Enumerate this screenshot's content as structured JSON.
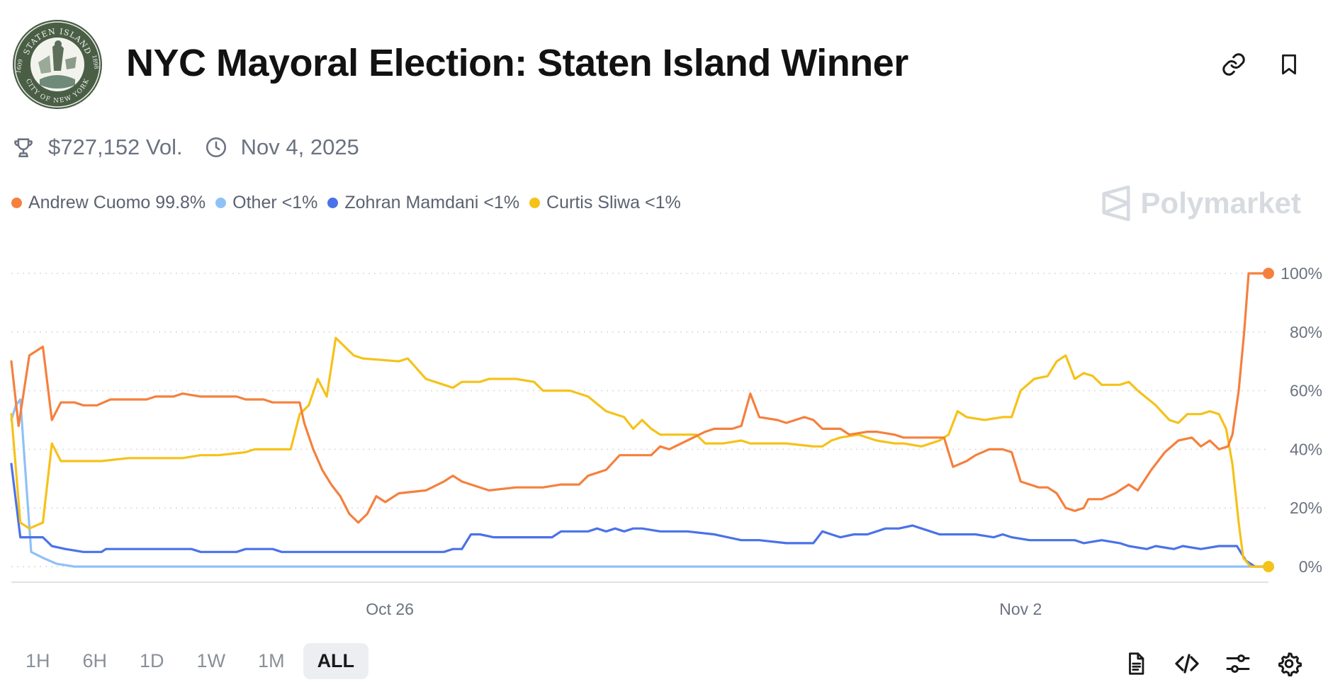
{
  "header": {
    "title": "NYC Mayoral Election: Staten Island Winner",
    "seal": {
      "top_text": "STATEN ISLAND",
      "bottom_text": "CITY OF NEW YORK",
      "left_year": "1609",
      "right_year": "1898"
    }
  },
  "meta": {
    "volume": "$727,152 Vol.",
    "date": "Nov 4, 2025"
  },
  "brand": {
    "name": "Polymarket"
  },
  "legend": [
    {
      "name": "Andrew Cuomo",
      "value": "99.8%",
      "color": "#f5803e"
    },
    {
      "name": "Other",
      "value": "<1%",
      "color": "#8fc1f5"
    },
    {
      "name": "Zohran Mamdani",
      "value": "<1%",
      "color": "#4a72e8"
    },
    {
      "name": "Curtis Sliwa",
      "value": "<1%",
      "color": "#f5c21a"
    }
  ],
  "time_ranges": [
    {
      "label": "1H",
      "active": false
    },
    {
      "label": "6H",
      "active": false
    },
    {
      "label": "1D",
      "active": false
    },
    {
      "label": "1W",
      "active": false
    },
    {
      "label": "1M",
      "active": false
    },
    {
      "label": "ALL",
      "active": true
    }
  ],
  "chart_data": {
    "type": "line",
    "x_unit": "days",
    "x_range": [
      0,
      13.95
    ],
    "ylim": [
      0,
      100
    ],
    "y_ticks": [
      0,
      20,
      40,
      60,
      80,
      100
    ],
    "y_tick_labels": [
      "0%",
      "20%",
      "40%",
      "60%",
      "80%",
      "100%"
    ],
    "x_tick_labels": [
      {
        "x": 4.2,
        "label": "Oct 26"
      },
      {
        "x": 11.2,
        "label": "Nov 2"
      }
    ],
    "grid": true,
    "series": [
      {
        "name": "Andrew Cuomo",
        "color": "#f5803e",
        "end_marker": true,
        "points": [
          [
            0,
            70
          ],
          [
            0.08,
            48
          ],
          [
            0.2,
            72
          ],
          [
            0.35,
            75
          ],
          [
            0.45,
            50
          ],
          [
            0.55,
            56
          ],
          [
            0.7,
            56
          ],
          [
            0.8,
            55
          ],
          [
            0.95,
            55
          ],
          [
            1.1,
            57
          ],
          [
            1.5,
            57
          ],
          [
            1.6,
            58
          ],
          [
            1.8,
            58
          ],
          [
            1.9,
            59
          ],
          [
            2.1,
            58
          ],
          [
            2.5,
            58
          ],
          [
            2.6,
            57
          ],
          [
            2.8,
            57
          ],
          [
            2.9,
            56
          ],
          [
            3.2,
            56
          ],
          [
            3.25,
            49
          ],
          [
            3.35,
            40
          ],
          [
            3.45,
            33
          ],
          [
            3.55,
            28
          ],
          [
            3.65,
            24
          ],
          [
            3.75,
            18
          ],
          [
            3.85,
            15
          ],
          [
            3.95,
            18
          ],
          [
            4.05,
            24
          ],
          [
            4.15,
            22
          ],
          [
            4.3,
            25
          ],
          [
            4.6,
            26
          ],
          [
            4.8,
            29
          ],
          [
            4.9,
            31
          ],
          [
            5.0,
            29
          ],
          [
            5.1,
            28
          ],
          [
            5.3,
            26
          ],
          [
            5.6,
            27
          ],
          [
            5.9,
            27
          ],
          [
            6.1,
            28
          ],
          [
            6.3,
            28
          ],
          [
            6.4,
            31
          ],
          [
            6.6,
            33
          ],
          [
            6.75,
            38
          ],
          [
            7.1,
            38
          ],
          [
            7.2,
            41
          ],
          [
            7.3,
            40
          ],
          [
            7.5,
            43
          ],
          [
            7.7,
            46
          ],
          [
            7.8,
            47
          ],
          [
            8.0,
            47
          ],
          [
            8.1,
            48
          ],
          [
            8.2,
            59
          ],
          [
            8.3,
            51
          ],
          [
            8.5,
            50
          ],
          [
            8.6,
            49
          ],
          [
            8.8,
            51
          ],
          [
            8.9,
            50
          ],
          [
            9.0,
            47
          ],
          [
            9.2,
            47
          ],
          [
            9.3,
            45
          ],
          [
            9.5,
            46
          ],
          [
            9.6,
            46
          ],
          [
            9.8,
            45
          ],
          [
            9.9,
            44
          ],
          [
            10.1,
            44
          ],
          [
            10.25,
            44
          ],
          [
            10.35,
            44
          ],
          [
            10.45,
            34
          ],
          [
            10.6,
            36
          ],
          [
            10.7,
            38
          ],
          [
            10.85,
            40
          ],
          [
            11.0,
            40
          ],
          [
            11.1,
            39
          ],
          [
            11.2,
            29
          ],
          [
            11.4,
            27
          ],
          [
            11.5,
            27
          ],
          [
            11.6,
            25
          ],
          [
            11.7,
            20
          ],
          [
            11.8,
            19
          ],
          [
            11.9,
            20
          ],
          [
            11.95,
            23
          ],
          [
            12.1,
            23
          ],
          [
            12.25,
            25
          ],
          [
            12.4,
            28
          ],
          [
            12.5,
            26
          ],
          [
            12.65,
            33
          ],
          [
            12.8,
            39
          ],
          [
            12.95,
            43
          ],
          [
            13.1,
            44
          ],
          [
            13.2,
            41
          ],
          [
            13.3,
            43
          ],
          [
            13.4,
            40
          ],
          [
            13.5,
            41
          ],
          [
            13.55,
            45
          ],
          [
            13.62,
            60
          ],
          [
            13.68,
            80
          ],
          [
            13.73,
            100
          ],
          [
            13.95,
            100
          ]
        ]
      },
      {
        "name": "Other",
        "color": "#8fc1f5",
        "end_marker": false,
        "points": [
          [
            0,
            50
          ],
          [
            0.05,
            55
          ],
          [
            0.1,
            57
          ],
          [
            0.15,
            35
          ],
          [
            0.22,
            5
          ],
          [
            0.35,
            3
          ],
          [
            0.5,
            1
          ],
          [
            0.7,
            0
          ],
          [
            1,
            0
          ],
          [
            6,
            0
          ],
          [
            13,
            0
          ],
          [
            13.95,
            0
          ]
        ]
      },
      {
        "name": "Zohran Mamdani",
        "color": "#4a72e8",
        "end_marker": false,
        "points": [
          [
            0,
            35
          ],
          [
            0.1,
            10
          ],
          [
            0.2,
            10
          ],
          [
            0.35,
            10
          ],
          [
            0.45,
            7
          ],
          [
            0.6,
            6
          ],
          [
            0.8,
            5
          ],
          [
            1,
            5
          ],
          [
            1.05,
            6
          ],
          [
            1.5,
            6
          ],
          [
            2.0,
            6
          ],
          [
            2.1,
            5
          ],
          [
            2.5,
            5
          ],
          [
            2.6,
            6
          ],
          [
            2.9,
            6
          ],
          [
            3.0,
            5
          ],
          [
            3.5,
            5
          ],
          [
            4.0,
            5
          ],
          [
            4.5,
            5
          ],
          [
            4.8,
            5
          ],
          [
            4.9,
            6
          ],
          [
            5.0,
            6
          ],
          [
            5.1,
            11
          ],
          [
            5.2,
            11
          ],
          [
            5.35,
            10
          ],
          [
            5.6,
            10
          ],
          [
            6.0,
            10
          ],
          [
            6.1,
            12
          ],
          [
            6.4,
            12
          ],
          [
            6.5,
            13
          ],
          [
            6.6,
            12
          ],
          [
            6.7,
            13
          ],
          [
            6.8,
            12
          ],
          [
            6.9,
            13
          ],
          [
            7.0,
            13
          ],
          [
            7.2,
            12
          ],
          [
            7.5,
            12
          ],
          [
            7.8,
            11
          ],
          [
            8.1,
            9
          ],
          [
            8.3,
            9
          ],
          [
            8.6,
            8
          ],
          [
            8.9,
            8
          ],
          [
            9.0,
            12
          ],
          [
            9.1,
            11
          ],
          [
            9.2,
            10
          ],
          [
            9.35,
            11
          ],
          [
            9.5,
            11
          ],
          [
            9.7,
            13
          ],
          [
            9.85,
            13
          ],
          [
            10.0,
            14
          ],
          [
            10.1,
            13
          ],
          [
            10.2,
            12
          ],
          [
            10.3,
            11
          ],
          [
            10.5,
            11
          ],
          [
            10.7,
            11
          ],
          [
            10.9,
            10
          ],
          [
            11.0,
            11
          ],
          [
            11.1,
            10
          ],
          [
            11.3,
            9
          ],
          [
            11.6,
            9
          ],
          [
            11.8,
            9
          ],
          [
            11.9,
            8
          ],
          [
            12.1,
            9
          ],
          [
            12.3,
            8
          ],
          [
            12.4,
            7
          ],
          [
            12.6,
            6
          ],
          [
            12.7,
            7
          ],
          [
            12.9,
            6
          ],
          [
            13.0,
            7
          ],
          [
            13.2,
            6
          ],
          [
            13.4,
            7
          ],
          [
            13.6,
            7
          ],
          [
            13.7,
            2
          ],
          [
            13.8,
            0
          ],
          [
            13.95,
            0
          ]
        ]
      },
      {
        "name": "Curtis Sliwa",
        "color": "#f5c21a",
        "end_marker": true,
        "points": [
          [
            0,
            52
          ],
          [
            0.1,
            15
          ],
          [
            0.2,
            13
          ],
          [
            0.35,
            15
          ],
          [
            0.45,
            42
          ],
          [
            0.55,
            36
          ],
          [
            0.7,
            36
          ],
          [
            1.0,
            36
          ],
          [
            1.3,
            37
          ],
          [
            1.6,
            37
          ],
          [
            1.9,
            37
          ],
          [
            2.1,
            38
          ],
          [
            2.3,
            38
          ],
          [
            2.6,
            39
          ],
          [
            2.7,
            40
          ],
          [
            3.1,
            40
          ],
          [
            3.2,
            52
          ],
          [
            3.3,
            55
          ],
          [
            3.4,
            64
          ],
          [
            3.5,
            58
          ],
          [
            3.6,
            78
          ],
          [
            3.7,
            75
          ],
          [
            3.8,
            72
          ],
          [
            3.9,
            71
          ],
          [
            4.3,
            70
          ],
          [
            4.4,
            71
          ],
          [
            4.6,
            64
          ],
          [
            4.8,
            62
          ],
          [
            4.9,
            61
          ],
          [
            5.0,
            63
          ],
          [
            5.2,
            63
          ],
          [
            5.3,
            64
          ],
          [
            5.6,
            64
          ],
          [
            5.8,
            63
          ],
          [
            5.9,
            60
          ],
          [
            6.2,
            60
          ],
          [
            6.4,
            58
          ],
          [
            6.6,
            53
          ],
          [
            6.8,
            51
          ],
          [
            6.9,
            47
          ],
          [
            7.0,
            50
          ],
          [
            7.1,
            47
          ],
          [
            7.2,
            45
          ],
          [
            7.4,
            45
          ],
          [
            7.6,
            45
          ],
          [
            7.7,
            42
          ],
          [
            7.9,
            42
          ],
          [
            8.1,
            43
          ],
          [
            8.2,
            42
          ],
          [
            8.4,
            42
          ],
          [
            8.6,
            42
          ],
          [
            8.9,
            41
          ],
          [
            9.0,
            41
          ],
          [
            9.1,
            43
          ],
          [
            9.2,
            44
          ],
          [
            9.4,
            45
          ],
          [
            9.6,
            43
          ],
          [
            9.8,
            42
          ],
          [
            9.9,
            42
          ],
          [
            10.1,
            41
          ],
          [
            10.3,
            43
          ],
          [
            10.4,
            45
          ],
          [
            10.5,
            53
          ],
          [
            10.6,
            51
          ],
          [
            10.8,
            50
          ],
          [
            11.0,
            51
          ],
          [
            11.1,
            51
          ],
          [
            11.2,
            60
          ],
          [
            11.35,
            64
          ],
          [
            11.5,
            65
          ],
          [
            11.6,
            70
          ],
          [
            11.7,
            72
          ],
          [
            11.8,
            64
          ],
          [
            11.9,
            66
          ],
          [
            12.0,
            65
          ],
          [
            12.1,
            62
          ],
          [
            12.3,
            62
          ],
          [
            12.4,
            63
          ],
          [
            12.5,
            60
          ],
          [
            12.7,
            55
          ],
          [
            12.85,
            50
          ],
          [
            12.95,
            49
          ],
          [
            13.05,
            52
          ],
          [
            13.2,
            52
          ],
          [
            13.3,
            53
          ],
          [
            13.4,
            52
          ],
          [
            13.48,
            47
          ],
          [
            13.55,
            35
          ],
          [
            13.62,
            15
          ],
          [
            13.67,
            3
          ],
          [
            13.75,
            0
          ],
          [
            13.95,
            0
          ]
        ]
      }
    ]
  }
}
